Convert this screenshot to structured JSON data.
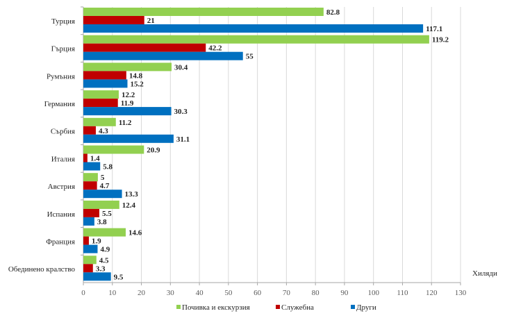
{
  "chart_data": {
    "type": "bar",
    "orientation": "horizontal",
    "categories": [
      "Турция",
      "Гърция",
      "Румъния",
      "Германия",
      "Сърбия",
      "Италия",
      "Австрия",
      "Испания",
      "Франция",
      "Обединено кралство"
    ],
    "series": [
      {
        "name": "Почивка и екскурзия",
        "color": "#92d050",
        "values": [
          82.8,
          119.2,
          30.4,
          12.2,
          11.2,
          20.9,
          5.0,
          12.4,
          14.6,
          4.5
        ]
      },
      {
        "name": "Служебна",
        "color": "#c00000",
        "values": [
          21.0,
          42.2,
          14.8,
          11.9,
          4.3,
          1.4,
          4.7,
          5.5,
          1.9,
          3.3
        ]
      },
      {
        "name": "Други",
        "color": "#0070c0",
        "values": [
          117.1,
          55.0,
          15.2,
          30.3,
          31.1,
          5.8,
          13.3,
          3.8,
          4.9,
          9.5
        ]
      }
    ],
    "xlim": [
      0,
      130
    ],
    "xticks": [
      0,
      10,
      20,
      30,
      40,
      50,
      60,
      70,
      80,
      90,
      100,
      110,
      120,
      130
    ],
    "xlabel": "Хиляди",
    "grid": true,
    "legend": "bottom"
  }
}
